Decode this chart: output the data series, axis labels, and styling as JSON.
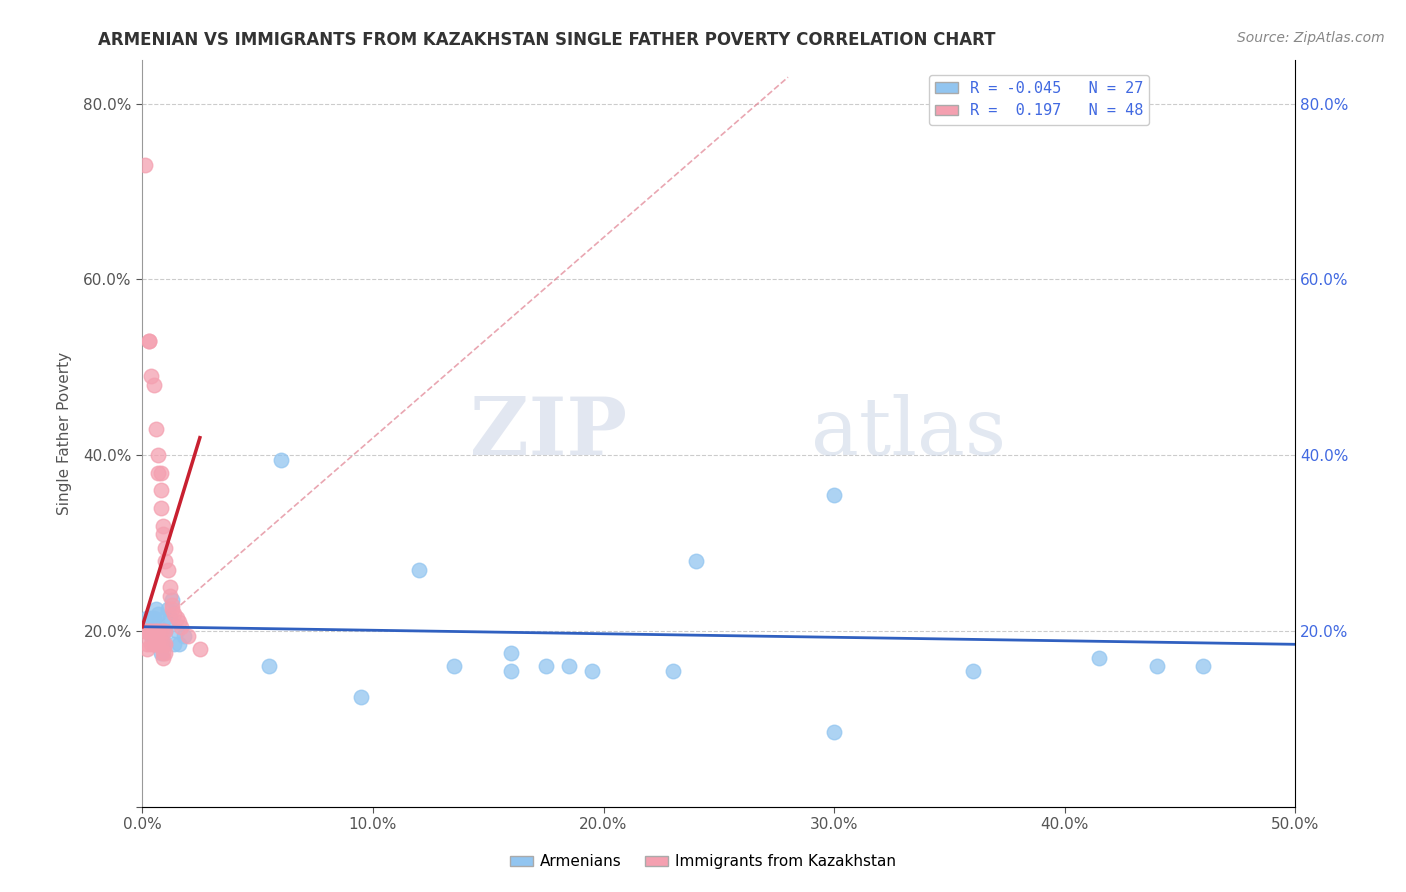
{
  "title": "ARMENIAN VS IMMIGRANTS FROM KAZAKHSTAN SINGLE FATHER POVERTY CORRELATION CHART",
  "source": "Source: ZipAtlas.com",
  "ylabel": "Single Father Poverty",
  "xlim": [
    0.0,
    0.5
  ],
  "ylim": [
    0.0,
    0.85
  ],
  "xticks": [
    0.0,
    0.1,
    0.2,
    0.3,
    0.4,
    0.5
  ],
  "xticklabels": [
    "0.0%",
    "10.0%",
    "20.0%",
    "30.0%",
    "40.0%",
    "50.0%"
  ],
  "yticks_left": [
    0.2,
    0.4,
    0.6,
    0.8
  ],
  "yticklabels_left": [
    "20.0%",
    "40.0%",
    "60.0%",
    "80.0%"
  ],
  "yticks_right": [
    0.2,
    0.4,
    0.6,
    0.8
  ],
  "yticklabels_right": [
    "20.0%",
    "40.0%",
    "60.0%",
    "80.0%"
  ],
  "color_armenian": "#92C5F0",
  "color_kazakhstan": "#F4A0B0",
  "color_line_armenian": "#3060C0",
  "color_line_kazakhstan": "#C82030",
  "color_dashed": "#E08090",
  "watermark_zip": "ZIP",
  "watermark_atlas": "atlas",
  "background_color": "#ffffff",
  "grid_color": "#CCCCCC",
  "legend_label1": "Armenians",
  "legend_label2": "Immigrants from Kazakhstan",
  "legend_r1": "R = -0.045",
  "legend_n1": "N = 27",
  "legend_r2": "R =  0.197",
  "legend_n2": "N = 48",
  "armenian_x": [
    0.002,
    0.003,
    0.004,
    0.004,
    0.005,
    0.005,
    0.006,
    0.006,
    0.007,
    0.007,
    0.008,
    0.008,
    0.009,
    0.01,
    0.01,
    0.011,
    0.012,
    0.013,
    0.014,
    0.015,
    0.016,
    0.018,
    0.06,
    0.12,
    0.16,
    0.24,
    0.3
  ],
  "armenian_y": [
    0.215,
    0.2,
    0.215,
    0.195,
    0.185,
    0.215,
    0.225,
    0.195,
    0.22,
    0.205,
    0.175,
    0.19,
    0.185,
    0.2,
    0.215,
    0.225,
    0.215,
    0.235,
    0.185,
    0.2,
    0.185,
    0.195,
    0.395,
    0.27,
    0.175,
    0.28,
    0.355
  ],
  "armenian_x2": [
    0.055,
    0.095,
    0.135,
    0.16,
    0.175,
    0.185,
    0.195,
    0.23,
    0.3,
    0.36,
    0.415,
    0.44,
    0.46
  ],
  "armenian_y2": [
    0.16,
    0.125,
    0.16,
    0.155,
    0.16,
    0.16,
    0.155,
    0.155,
    0.085,
    0.155,
    0.17,
    0.16,
    0.16
  ],
  "kazakhstan_x": [
    0.001,
    0.001,
    0.002,
    0.002,
    0.002,
    0.003,
    0.003,
    0.003,
    0.004,
    0.004,
    0.004,
    0.005,
    0.005,
    0.005,
    0.006,
    0.006,
    0.006,
    0.007,
    0.007,
    0.007,
    0.007,
    0.008,
    0.008,
    0.008,
    0.008,
    0.008,
    0.009,
    0.009,
    0.009,
    0.009,
    0.009,
    0.009,
    0.01,
    0.01,
    0.01,
    0.01,
    0.01,
    0.011,
    0.012,
    0.012,
    0.013,
    0.013,
    0.014,
    0.015,
    0.016,
    0.017,
    0.02,
    0.025
  ],
  "kazakhstan_y": [
    0.73,
    0.2,
    0.2,
    0.185,
    0.18,
    0.53,
    0.53,
    0.2,
    0.49,
    0.2,
    0.185,
    0.48,
    0.2,
    0.185,
    0.43,
    0.2,
    0.185,
    0.4,
    0.38,
    0.2,
    0.185,
    0.38,
    0.36,
    0.34,
    0.2,
    0.185,
    0.32,
    0.31,
    0.2,
    0.185,
    0.175,
    0.17,
    0.295,
    0.28,
    0.2,
    0.185,
    0.175,
    0.27,
    0.25,
    0.24,
    0.23,
    0.225,
    0.22,
    0.215,
    0.21,
    0.205,
    0.195,
    0.18
  ]
}
